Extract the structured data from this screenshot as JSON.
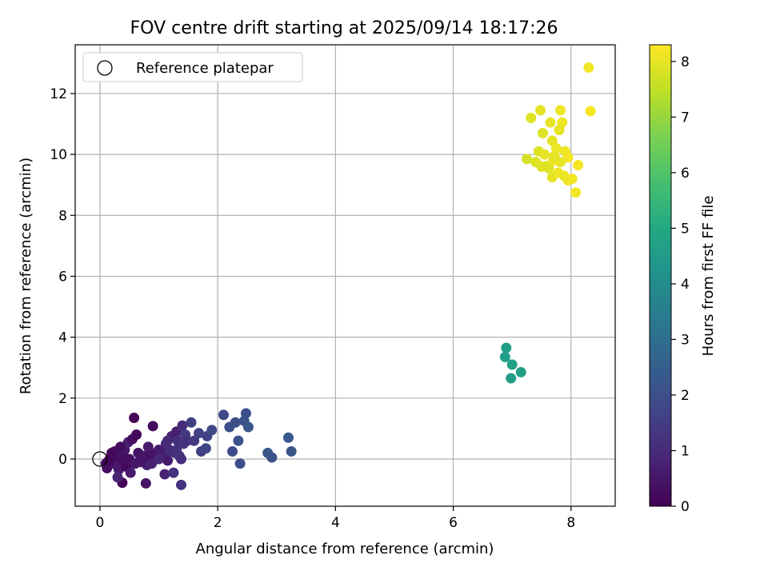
{
  "chart_data": {
    "type": "scatter",
    "title": "FOV centre drift starting at 2025/09/14 18:17:26",
    "xlabel": "Angular distance from reference (arcmin)",
    "ylabel": "Rotation from reference (arcmin)",
    "xlim": [
      -0.42,
      8.75
    ],
    "ylim": [
      -1.55,
      13.6
    ],
    "x_ticks": [
      0,
      2,
      4,
      6,
      8
    ],
    "y_ticks": [
      0,
      2,
      4,
      6,
      8,
      10,
      12
    ],
    "grid": true,
    "colormap": "viridis",
    "colorbar": {
      "label": "Hours from first FF file",
      "min": 0,
      "max": 8.3,
      "ticks": [
        0,
        1,
        2,
        3,
        4,
        5,
        6,
        7,
        8
      ]
    },
    "legend": {
      "position": "top-left",
      "entries": [
        "Reference platepar"
      ]
    },
    "reference_point": {
      "x": 0,
      "y": 0
    },
    "points": [
      [
        0.1,
        -0.15,
        0.2
      ],
      [
        0.12,
        -0.3,
        0.3
      ],
      [
        0.18,
        0.05,
        0.2
      ],
      [
        0.22,
        -0.1,
        0.4
      ],
      [
        0.25,
        0.25,
        0.3
      ],
      [
        0.28,
        -0.2,
        0.5
      ],
      [
        0.3,
        0.1,
        0.2
      ],
      [
        0.32,
        -0.35,
        0.6
      ],
      [
        0.35,
        0.15,
        0.4
      ],
      [
        0.38,
        -0.78,
        0.1
      ],
      [
        0.4,
        -0.05,
        0.3
      ],
      [
        0.42,
        0.3,
        0.5
      ],
      [
        0.45,
        -0.25,
        0.2
      ],
      [
        0.48,
        0.55,
        0.7
      ],
      [
        0.5,
        0.0,
        0.4
      ],
      [
        0.52,
        -0.45,
        0.6
      ],
      [
        0.55,
        0.65,
        0.3
      ],
      [
        0.58,
        1.35,
        0.1
      ],
      [
        0.6,
        -0.15,
        0.5
      ],
      [
        0.62,
        0.8,
        0.2
      ],
      [
        0.3,
        -0.6,
        0.8
      ],
      [
        0.65,
        0.2,
        0.4
      ],
      [
        0.68,
        -0.05,
        0.6
      ],
      [
        0.72,
        0.0,
        0.3
      ],
      [
        0.75,
        0.1,
        0.5
      ],
      [
        0.78,
        -0.8,
        0.4
      ],
      [
        0.8,
        -0.2,
        0.7
      ],
      [
        0.82,
        0.4,
        0.6
      ],
      [
        0.85,
        0.1,
        0.4
      ],
      [
        0.88,
        -0.15,
        0.8
      ],
      [
        0.9,
        1.08,
        0.2
      ],
      [
        0.95,
        0.2,
        0.5
      ],
      [
        1.0,
        0.3,
        0.6
      ],
      [
        1.05,
        0.15,
        0.9
      ],
      [
        1.08,
        0.2,
        0.7
      ],
      [
        1.1,
        -0.5,
        0.8
      ],
      [
        1.12,
        0.5,
        1.0
      ],
      [
        1.15,
        -0.05,
        0.6
      ],
      [
        1.18,
        0.3,
        0.9
      ],
      [
        1.2,
        0.25,
        1.1
      ],
      [
        1.22,
        0.75,
        0.8
      ],
      [
        1.25,
        -0.45,
        1.2
      ],
      [
        1.28,
        0.2,
        1.0
      ],
      [
        1.3,
        0.9,
        0.7
      ],
      [
        1.32,
        0.6,
        1.1
      ],
      [
        1.35,
        0.1,
        1.3
      ],
      [
        1.38,
        -0.85,
        1.2
      ],
      [
        1.4,
        1.1,
        1.0
      ],
      [
        1.42,
        0.5,
        1.3
      ],
      [
        1.45,
        0.8,
        1.4
      ],
      [
        1.48,
        0.6,
        1.2
      ],
      [
        1.55,
        1.2,
        1.5
      ],
      [
        1.6,
        0.6,
        1.4
      ],
      [
        1.68,
        0.85,
        1.6
      ],
      [
        1.72,
        0.25,
        1.5
      ],
      [
        1.8,
        0.35,
        1.7
      ],
      [
        1.82,
        0.75,
        1.6
      ],
      [
        1.9,
        0.95,
        1.8
      ],
      [
        2.1,
        1.45,
        1.8
      ],
      [
        2.2,
        1.05,
        2.0
      ],
      [
        2.25,
        0.25,
        1.9
      ],
      [
        2.3,
        1.2,
        2.0
      ],
      [
        2.35,
        0.6,
        2.1
      ],
      [
        2.38,
        -0.15,
        2.0
      ],
      [
        2.45,
        1.25,
        2.1
      ],
      [
        2.48,
        1.5,
        2.0
      ],
      [
        2.52,
        1.05,
        2.2
      ],
      [
        2.85,
        0.2,
        2.2
      ],
      [
        2.92,
        0.05,
        2.1
      ],
      [
        3.2,
        0.7,
        2.3
      ],
      [
        3.25,
        0.25,
        2.2
      ],
      [
        0.15,
        -0.05,
        0.1
      ],
      [
        0.2,
        0.2,
        0.15
      ],
      [
        0.35,
        0.4,
        0.25
      ],
      [
        0.45,
        0.0,
        0.3
      ],
      [
        1.0,
        0.0,
        0.9
      ],
      [
        1.3,
        0.3,
        1.2
      ],
      [
        1.38,
        0.0,
        1.1
      ],
      [
        1.15,
        0.6,
        1.0
      ],
      [
        0.7,
        -0.1,
        0.5
      ],
      [
        6.9,
        3.65,
        4.6
      ],
      [
        6.88,
        3.35,
        4.6
      ],
      [
        7.0,
        3.1,
        4.7
      ],
      [
        6.98,
        2.65,
        4.6
      ],
      [
        7.15,
        2.85,
        4.7
      ],
      [
        8.3,
        12.85,
        8.2
      ],
      [
        7.48,
        11.45,
        8.0
      ],
      [
        7.82,
        11.45,
        8.1
      ],
      [
        8.33,
        11.42,
        8.2
      ],
      [
        7.32,
        11.2,
        7.9
      ],
      [
        7.65,
        11.05,
        8.0
      ],
      [
        7.85,
        11.05,
        8.1
      ],
      [
        7.52,
        10.7,
        7.9
      ],
      [
        7.8,
        10.8,
        8.0
      ],
      [
        7.68,
        10.45,
        8.0
      ],
      [
        7.75,
        10.2,
        8.1
      ],
      [
        7.45,
        10.1,
        7.9
      ],
      [
        7.55,
        10.0,
        8.0
      ],
      [
        7.9,
        10.1,
        8.1
      ],
      [
        7.95,
        9.9,
        8.2
      ],
      [
        7.25,
        9.85,
        7.8
      ],
      [
        7.4,
        9.75,
        7.9
      ],
      [
        7.58,
        9.62,
        8.0
      ],
      [
        7.7,
        9.8,
        8.1
      ],
      [
        7.82,
        9.75,
        8.0
      ],
      [
        7.62,
        9.55,
        7.9
      ],
      [
        8.12,
        9.65,
        8.2
      ],
      [
        7.88,
        9.3,
        8.1
      ],
      [
        7.68,
        9.25,
        8.0
      ],
      [
        7.78,
        9.4,
        8.1
      ],
      [
        7.95,
        9.15,
        8.1
      ],
      [
        8.02,
        9.2,
        8.2
      ],
      [
        8.08,
        8.75,
        8.2
      ],
      [
        7.5,
        9.6,
        7.9
      ],
      [
        7.72,
        9.95,
        8.0
      ]
    ]
  }
}
